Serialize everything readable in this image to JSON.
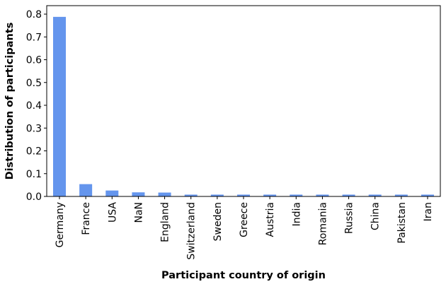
{
  "chart_data": {
    "type": "bar",
    "title": "",
    "xlabel": "Participant country of origin",
    "ylabel": "Distribution of participants",
    "categories": [
      "Germany",
      "France",
      "USA",
      "NaN",
      "England",
      "Switzerland",
      "Sweden",
      "Greece",
      "Austria",
      "India",
      "Romania",
      "Russia",
      "China",
      "Pakistan",
      "Iran"
    ],
    "values": [
      0.788,
      0.054,
      0.026,
      0.018,
      0.017,
      0.008,
      0.008,
      0.008,
      0.008,
      0.008,
      0.008,
      0.008,
      0.008,
      0.008,
      0.008
    ],
    "ylim": [
      0,
      0.8
    ],
    "yticks": [
      0.0,
      0.1,
      0.2,
      0.3,
      0.4,
      0.5,
      0.6,
      0.7,
      0.8
    ],
    "ytick_labels": [
      "0.0",
      "0.1",
      "0.2",
      "0.3",
      "0.4",
      "0.5",
      "0.6",
      "0.7",
      "0.8"
    ],
    "bar_color": "#6495ed",
    "grid": false,
    "legend": false
  }
}
